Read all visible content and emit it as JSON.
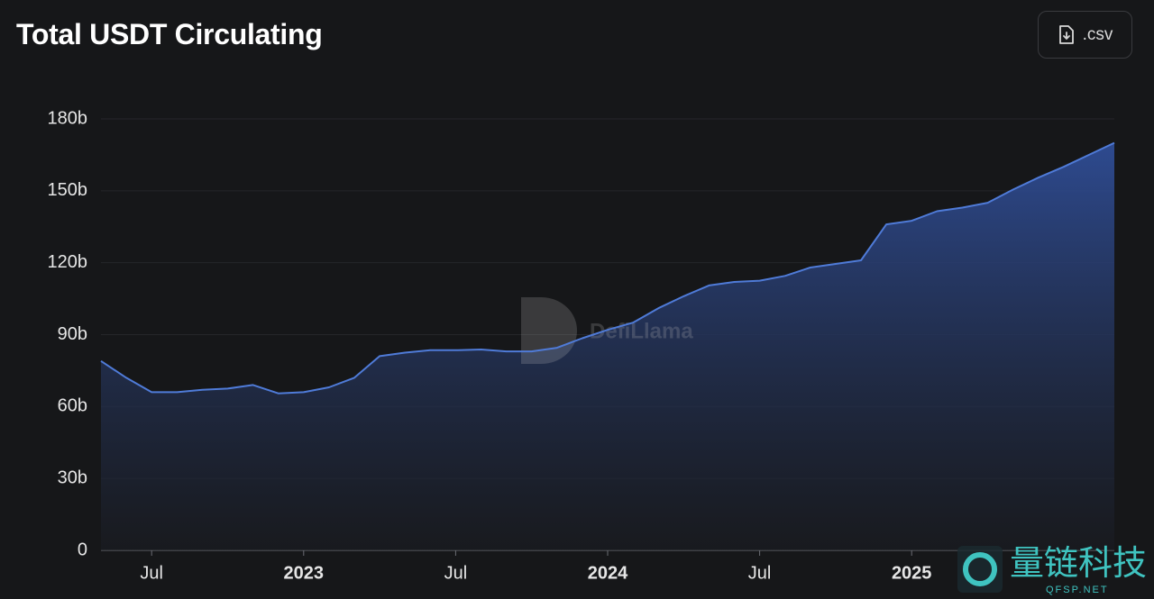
{
  "title": "Total USDT Circulating",
  "button": ".csv",
  "watermark": "DefiLlama",
  "corner_watermark": {
    "title": "量链科技",
    "subtitle": "QFSP.NET"
  },
  "chart_data": {
    "type": "area",
    "x": [
      "2022-05",
      "2022-06",
      "2022-07",
      "2022-08",
      "2022-09",
      "2022-10",
      "2022-11",
      "2022-12",
      "2023-01",
      "2023-02",
      "2023-03",
      "2023-04",
      "2023-05",
      "2023-06",
      "2023-07",
      "2023-08",
      "2023-09",
      "2023-10",
      "2023-11",
      "2023-12",
      "2024-01",
      "2024-02",
      "2024-03",
      "2024-04",
      "2024-05",
      "2024-06",
      "2024-07",
      "2024-08",
      "2024-09",
      "2024-10",
      "2024-11",
      "2024-12",
      "2025-01",
      "2025-02",
      "2025-03",
      "2025-04",
      "2025-05",
      "2025-06",
      "2025-07",
      "2025-08",
      "2025-09"
    ],
    "values": [
      79,
      72,
      66,
      66,
      67,
      67.5,
      69,
      65.5,
      66,
      68,
      72,
      81,
      82.5,
      83.5,
      83.5,
      83.8,
      83,
      83,
      84.5,
      88.5,
      92,
      95,
      101,
      106,
      110.5,
      112,
      112.5,
      114.5,
      118,
      119.5,
      121,
      136,
      137.5,
      141.5,
      143,
      145,
      150.5,
      155.5,
      160,
      165,
      170
    ],
    "color": "#4f7bd8",
    "xlim": [
      "2022-05",
      "2025-09"
    ],
    "xticks": [
      {
        "value": "2022-07",
        "label": "Jul"
      },
      {
        "value": "2023-01",
        "label": "2023"
      },
      {
        "value": "2023-07",
        "label": "Jul"
      },
      {
        "value": "2024-01",
        "label": "2024"
      },
      {
        "value": "2024-07",
        "label": "Jul"
      },
      {
        "value": "2025-01",
        "label": "2025"
      }
    ],
    "ylim": [
      0,
      180
    ],
    "yticks": [
      0,
      {
        "value": 30,
        "label": "30b"
      },
      {
        "value": 60,
        "label": "60b"
      },
      {
        "value": 90,
        "label": "90b"
      },
      {
        "value": 120,
        "label": "120b"
      },
      {
        "value": 150,
        "label": "150b"
      },
      {
        "value": 180,
        "label": "180b"
      }
    ],
    "grid": true
  }
}
